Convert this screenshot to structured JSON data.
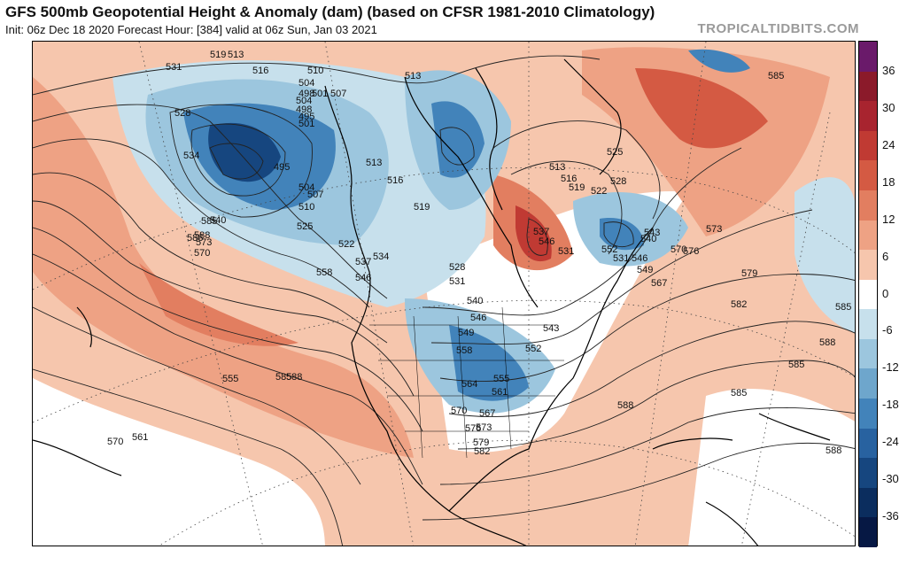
{
  "header": {
    "title": "GFS 500mb Geopotential Height & Anomaly (dam) (based on CFSR 1981-2010 Climatology)",
    "subtitle": "Init: 06z Dec 18 2020   Forecast Hour: [384]   valid at 06z Sun, Jan 03 2021",
    "watermark": "TROPICALTIDBITS.COM"
  },
  "colorbar": {
    "ticks": [
      "36",
      "30",
      "24",
      "18",
      "12",
      "6",
      "0",
      "-6",
      "-12",
      "-18",
      "-24",
      "-30",
      "-36"
    ],
    "colors": [
      "#6a1a6a",
      "#8b1a2a",
      "#a8242f",
      "#c03a33",
      "#d45a43",
      "#e27e60",
      "#eea284",
      "#f6c6ad",
      "#ffffff",
      "#c7e0ec",
      "#9cc6de",
      "#6ea6cc",
      "#4283ba",
      "#2862a0",
      "#16467f",
      "#0b2d5e",
      "#061844"
    ]
  },
  "map": {
    "contour_labels": [
      "519",
      "513",
      "531",
      "516",
      "510",
      "504",
      "498",
      "501",
      "507",
      "504",
      "498",
      "495",
      "501",
      "513",
      "528",
      "534",
      "495",
      "504",
      "507",
      "510",
      "513",
      "516",
      "519",
      "540",
      "525",
      "522",
      "537",
      "534",
      "546",
      "528",
      "531",
      "540",
      "546",
      "549",
      "558",
      "564",
      "570",
      "576",
      "579",
      "582",
      "573",
      "567",
      "561",
      "555",
      "552",
      "543",
      "546",
      "537",
      "531",
      "513",
      "516",
      "519",
      "522",
      "525",
      "528",
      "531",
      "540",
      "543",
      "546",
      "549",
      "552",
      "567",
      "570",
      "576",
      "573",
      "579",
      "582",
      "585",
      "588",
      "585",
      "585",
      "585",
      "588",
      "588",
      "588",
      "585",
      "570",
      "561",
      "555",
      "558",
      "573",
      "588",
      "585",
      "588",
      "570"
    ],
    "colors": {
      "land_outline": "#000000",
      "contour": "#222222",
      "warm_light": "#f6c6ad",
      "warm_mid": "#eea284",
      "warm_strong": "#d45a43",
      "cold_light": "#c7e0ec",
      "cold_mid": "#6ea6cc",
      "cold_strong": "#2862a0",
      "cold_core": "#0b2d5e"
    }
  }
}
